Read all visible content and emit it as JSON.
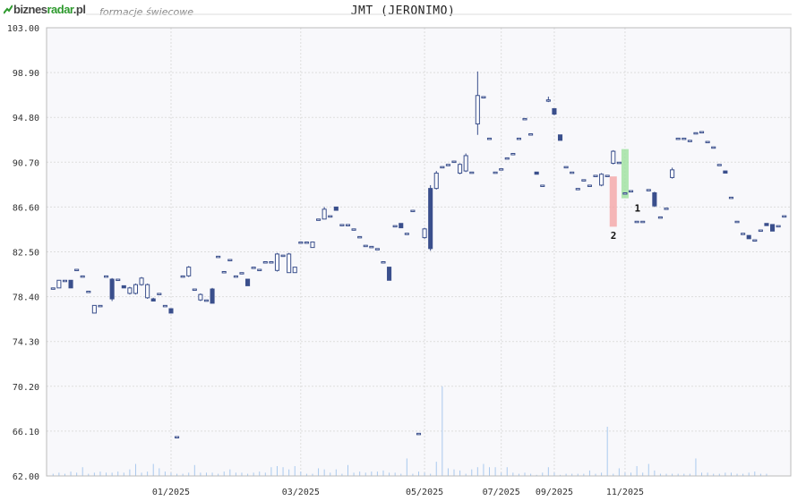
{
  "header": {
    "logo_part1": "biznes",
    "logo_part2": "radar",
    "logo_part3": ".pl",
    "subtitle": "formacje świecowe",
    "logo_icon": "trend-arrow-icon"
  },
  "colors": {
    "up_fill": "#ffffff",
    "up_stroke": "#3a4f8c",
    "down_fill": "#3a4f8c",
    "grid": "#dddddd",
    "volume": "#a9c9ee",
    "plot_bg": "#f8f8fb",
    "pattern_bear": "#f4a0a0",
    "pattern_bull": "#98e098"
  },
  "chart_data": {
    "type": "candlestick",
    "title": "JMT (JERONIMO)",
    "ylim": [
      62.0,
      103.0
    ],
    "y_ticks": [
      "103.00",
      "98.90",
      "94.80",
      "90.70",
      "86.60",
      "82.50",
      "78.40",
      "74.30",
      "70.20",
      "66.10",
      "62.00"
    ],
    "x_ticks": [
      {
        "label": "01/2025",
        "index": 20
      },
      {
        "label": "03/2025",
        "index": 42
      },
      {
        "label": "05/2025",
        "index": 63
      },
      {
        "label": "07/2025",
        "index": 76
      },
      {
        "label": "09/2025",
        "index": 85
      },
      {
        "label": "11/2025",
        "index": 97
      }
    ],
    "grid": true,
    "annotations": [
      {
        "label": "1",
        "index": 98,
        "price": 86.5
      },
      {
        "label": "2",
        "index": 95,
        "price": 84.0
      }
    ],
    "pattern_highlights": [
      {
        "index": 95,
        "low": 84.8,
        "high": 89.4,
        "kind": "bearish"
      },
      {
        "index": 97,
        "low": 87.4,
        "high": 91.9,
        "kind": "bullish"
      }
    ],
    "candles": [
      [
        79.2,
        79.2,
        79.2,
        79.2
      ],
      [
        79.2,
        79.9,
        79.2,
        79.9
      ],
      [
        79.9,
        79.9,
        79.9,
        79.9
      ],
      [
        79.9,
        79.2,
        79.2,
        79.9
      ],
      [
        80.9,
        80.9,
        80.9,
        80.9
      ],
      [
        80.3,
        80.3,
        80.3,
        80.3
      ],
      [
        78.9,
        78.9,
        78.9,
        78.9
      ],
      [
        76.9,
        77.6,
        76.9,
        77.6
      ],
      [
        77.6,
        77.6,
        77.6,
        77.6
      ],
      [
        80.3,
        80.3,
        80.3,
        80.3
      ],
      [
        80.0,
        78.2,
        78.0,
        80.1
      ],
      [
        80.0,
        80.0,
        80.0,
        80.0
      ],
      [
        79.4,
        79.2,
        79.2,
        79.4
      ],
      [
        78.7,
        79.2,
        78.6,
        79.3
      ],
      [
        78.7,
        79.5,
        78.6,
        79.6
      ],
      [
        79.5,
        80.1,
        79.4,
        80.2
      ],
      [
        78.3,
        79.5,
        78.2,
        79.6
      ],
      [
        78.2,
        78.0,
        78.0,
        78.3
      ],
      [
        78.7,
        78.7,
        78.7,
        78.7
      ],
      [
        77.6,
        77.6,
        77.6,
        77.6
      ],
      [
        77.3,
        76.9,
        76.9,
        77.3
      ],
      [
        65.6,
        65.6,
        65.6,
        65.6
      ],
      [
        80.3,
        80.3,
        80.3,
        80.3
      ],
      [
        80.3,
        81.1,
        80.2,
        81.2
      ],
      [
        79.1,
        79.1,
        79.1,
        79.1
      ],
      [
        78.1,
        78.6,
        78.0,
        78.7
      ],
      [
        78.1,
        78.1,
        78.1,
        78.1
      ],
      [
        79.1,
        77.8,
        77.8,
        79.2
      ],
      [
        82.1,
        82.1,
        82.1,
        82.1
      ],
      [
        80.7,
        80.7,
        80.7,
        80.7
      ],
      [
        81.8,
        81.8,
        81.8,
        81.8
      ],
      [
        80.3,
        80.3,
        80.3,
        80.3
      ],
      [
        80.6,
        80.6,
        80.6,
        80.6
      ],
      [
        80.0,
        79.4,
        79.4,
        80.0
      ],
      [
        81.1,
        81.1,
        81.1,
        81.1
      ],
      [
        80.9,
        80.9,
        80.9,
        80.9
      ],
      [
        81.6,
        81.6,
        81.6,
        81.6
      ],
      [
        81.6,
        81.6,
        81.6,
        81.6
      ],
      [
        80.8,
        82.3,
        80.7,
        82.4
      ],
      [
        82.2,
        82.2,
        82.2,
        82.2
      ],
      [
        80.6,
        82.3,
        80.6,
        82.4
      ],
      [
        80.6,
        81.1,
        80.6,
        81.1
      ],
      [
        83.4,
        83.4,
        83.4,
        83.4
      ],
      [
        83.4,
        83.4,
        83.4,
        83.4
      ],
      [
        82.9,
        83.4,
        82.9,
        83.4
      ],
      [
        85.5,
        85.5,
        85.5,
        85.5
      ],
      [
        85.5,
        86.4,
        85.5,
        86.6
      ],
      [
        85.8,
        85.8,
        85.8,
        85.8
      ],
      [
        86.6,
        86.3,
        86.3,
        86.6
      ],
      [
        85.0,
        85.0,
        85.0,
        85.0
      ],
      [
        85.0,
        85.0,
        85.0,
        85.0
      ],
      [
        84.6,
        84.6,
        84.6,
        84.6
      ],
      [
        83.9,
        83.9,
        83.9,
        83.9
      ],
      [
        83.1,
        83.1,
        83.1,
        83.1
      ],
      [
        83.0,
        83.0,
        83.0,
        83.0
      ],
      [
        82.8,
        82.8,
        82.8,
        82.8
      ],
      [
        81.6,
        81.6,
        81.6,
        81.6
      ],
      [
        81.1,
        79.9,
        79.9,
        81.1
      ],
      [
        84.9,
        84.9,
        84.9,
        84.9
      ],
      [
        85.1,
        84.7,
        84.7,
        85.1
      ],
      [
        84.2,
        84.2,
        84.2,
        84.2
      ],
      [
        86.3,
        86.3,
        86.3,
        86.3
      ],
      [
        65.9,
        65.9,
        65.9,
        65.9
      ],
      [
        83.8,
        84.6,
        83.7,
        84.7
      ],
      [
        88.3,
        82.8,
        82.6,
        88.6
      ],
      [
        88.3,
        89.7,
        88.2,
        89.9
      ],
      [
        90.3,
        90.3,
        90.3,
        90.3
      ],
      [
        90.5,
        90.5,
        90.5,
        90.5
      ],
      [
        90.8,
        90.8,
        90.8,
        90.8
      ],
      [
        89.7,
        90.5,
        89.6,
        90.6
      ],
      [
        89.9,
        91.3,
        89.8,
        91.5
      ],
      [
        89.8,
        89.8,
        89.8,
        89.8
      ],
      [
        94.2,
        96.8,
        93.2,
        99.0
      ],
      [
        96.7,
        96.7,
        96.7,
        96.7
      ],
      [
        92.9,
        92.9,
        92.9,
        92.9
      ],
      [
        89.8,
        89.8,
        89.8,
        89.8
      ],
      [
        90.1,
        90.1,
        90.1,
        90.1
      ],
      [
        91.1,
        91.1,
        91.1,
        91.1
      ],
      [
        91.5,
        91.5,
        91.5,
        91.5
      ],
      [
        92.9,
        92.9,
        92.9,
        92.9
      ],
      [
        94.7,
        94.7,
        94.7,
        94.7
      ],
      [
        93.3,
        93.3,
        93.3,
        93.3
      ],
      [
        89.8,
        89.6,
        89.6,
        89.8
      ],
      [
        88.6,
        88.6,
        88.6,
        88.6
      ],
      [
        96.3,
        96.4,
        96.2,
        96.7
      ],
      [
        95.6,
        95.1,
        95.0,
        95.6
      ],
      [
        93.2,
        92.7,
        92.7,
        93.2
      ],
      [
        90.3,
        90.3,
        90.3,
        90.3
      ],
      [
        89.8,
        89.8,
        89.8,
        89.8
      ],
      [
        88.3,
        88.3,
        88.3,
        88.3
      ],
      [
        89.1,
        89.1,
        89.1,
        89.1
      ],
      [
        88.6,
        88.6,
        88.6,
        88.6
      ],
      [
        89.5,
        89.5,
        89.5,
        89.5
      ],
      [
        88.6,
        89.6,
        88.5,
        89.7
      ],
      [
        89.5,
        89.5,
        89.5,
        89.5
      ],
      [
        90.6,
        91.7,
        90.5,
        91.8
      ],
      [
        90.7,
        90.7,
        90.7,
        90.7
      ],
      [
        87.9,
        87.9,
        87.9,
        87.9
      ],
      [
        88.1,
        88.1,
        88.1,
        88.1
      ],
      [
        85.3,
        85.3,
        85.3,
        85.3
      ],
      [
        85.3,
        85.3,
        85.3,
        85.3
      ],
      [
        88.2,
        88.2,
        88.2,
        88.2
      ],
      [
        87.9,
        86.7,
        86.6,
        88.0
      ],
      [
        85.7,
        85.7,
        85.7,
        85.7
      ],
      [
        86.5,
        86.5,
        86.5,
        86.5
      ],
      [
        89.3,
        90.0,
        89.2,
        90.2
      ],
      [
        92.9,
        92.9,
        92.9,
        92.9
      ],
      [
        92.9,
        92.9,
        92.9,
        92.9
      ],
      [
        92.7,
        92.7,
        92.7,
        92.7
      ],
      [
        93.4,
        93.4,
        93.4,
        93.4
      ],
      [
        93.5,
        93.5,
        93.5,
        93.5
      ],
      [
        92.6,
        92.6,
        92.6,
        92.6
      ],
      [
        92.1,
        92.1,
        92.1,
        92.1
      ],
      [
        90.5,
        90.5,
        90.5,
        90.5
      ],
      [
        89.9,
        89.7,
        89.7,
        89.9
      ],
      [
        87.5,
        87.5,
        87.5,
        87.5
      ],
      [
        85.3,
        85.3,
        85.3,
        85.3
      ],
      [
        84.2,
        84.2,
        84.2,
        84.2
      ],
      [
        84.0,
        83.7,
        83.7,
        84.0
      ],
      [
        83.6,
        83.6,
        83.6,
        83.6
      ],
      [
        84.5,
        84.5,
        84.5,
        84.5
      ],
      [
        85.1,
        84.9,
        84.9,
        85.1
      ],
      [
        85.0,
        84.4,
        84.4,
        85.0
      ],
      [
        84.9,
        84.9,
        84.9,
        84.9
      ],
      [
        85.8,
        85.8,
        85.8,
        85.8
      ]
    ],
    "volumes": [
      62.2,
      62.3,
      62.2,
      62.4,
      62.3,
      62.8,
      62.2,
      62.3,
      62.4,
      62.3,
      62.3,
      62.4,
      62.3,
      62.6,
      63.1,
      62.3,
      62.4,
      63.1,
      62.7,
      62.4,
      62.3,
      62.2,
      62.2,
      62.3,
      63.0,
      62.3,
      62.3,
      62.3,
      62.2,
      62.4,
      62.6,
      62.3,
      62.3,
      62.2,
      62.3,
      62.4,
      62.3,
      62.8,
      62.9,
      62.8,
      62.6,
      62.9,
      62.4,
      62.2,
      62.2,
      62.7,
      62.6,
      62.3,
      62.6,
      62.2,
      63.0,
      62.3,
      62.4,
      62.3,
      62.4,
      62.4,
      62.5,
      62.3,
      62.3,
      62.2,
      63.6,
      62.2,
      62.4,
      62.3,
      62.2,
      63.3,
      70.2,
      62.7,
      62.6,
      62.5,
      62.2,
      62.6,
      62.8,
      63.1,
      62.8,
      62.8,
      62.3,
      62.8,
      62.3,
      62.2,
      62.3,
      62.2,
      62.1,
      62.3,
      62.8,
      62.3,
      62.1,
      62.2,
      62.2,
      62.2,
      62.2,
      62.5,
      62.2,
      62.3,
      66.5,
      62.2,
      62.7,
      62.3,
      62.3,
      62.9,
      62.3,
      63.1,
      62.5,
      62.2,
      62.2,
      62.2,
      62.2,
      62.2,
      62.2,
      63.6,
      62.3,
      62.3,
      62.2,
      62.2,
      62.3,
      62.3,
      62.2,
      62.2,
      62.3,
      62.4,
      62.2,
      62.2
    ]
  }
}
